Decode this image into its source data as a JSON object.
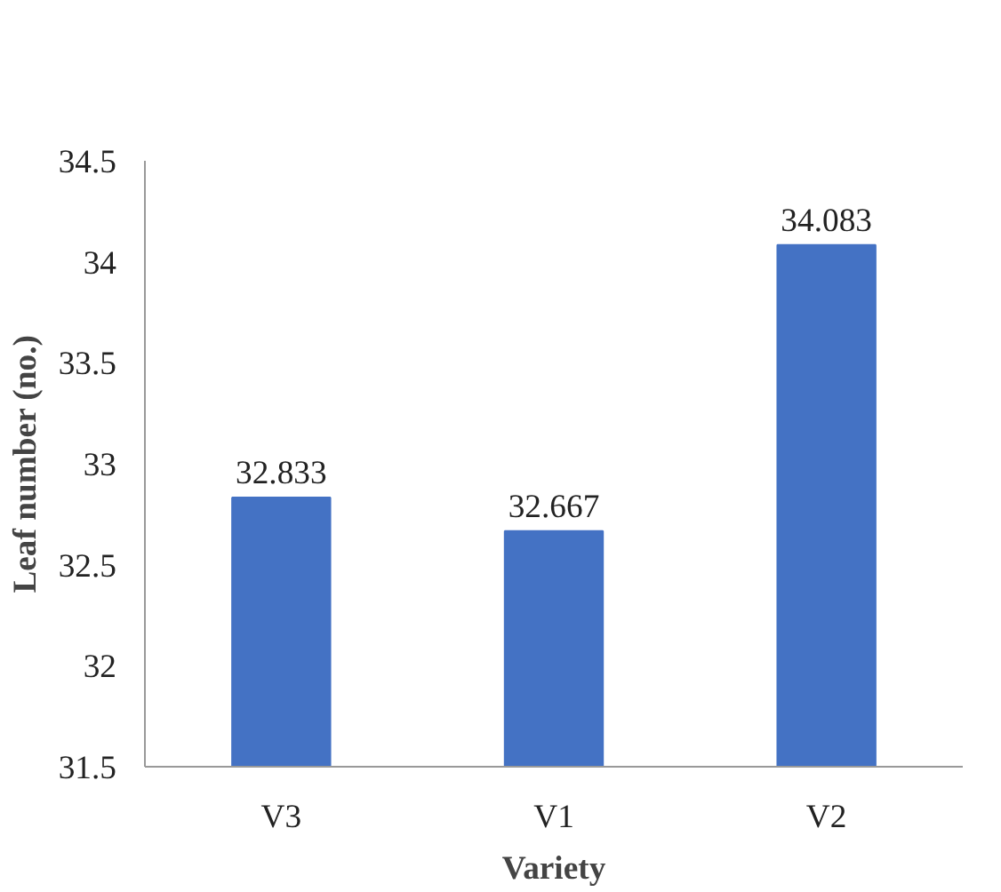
{
  "chart_data": {
    "type": "bar",
    "xlabel": "Variety",
    "ylabel": "Leaf number (no.)",
    "categories": [
      "V3",
      "V1",
      "V2"
    ],
    "values": [
      32.833,
      32.667,
      34.083
    ],
    "color": "#4472c4",
    "ylim": [
      31.5,
      34.5
    ],
    "yticks": [
      31.5,
      32,
      32.5,
      33,
      33.5,
      34,
      34.5
    ],
    "data_labels": true
  }
}
